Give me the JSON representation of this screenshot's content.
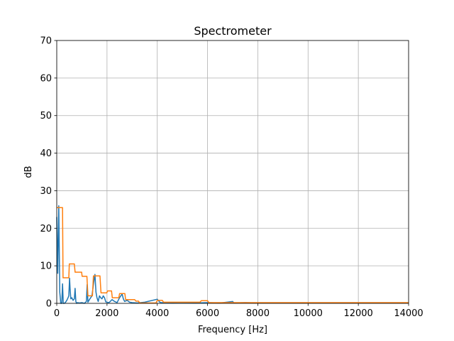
{
  "chart_data": {
    "type": "line",
    "title": "Spectrometer",
    "xlabel": "Frequency [Hz]",
    "ylabel": "dB",
    "xlim": [
      0,
      14000
    ],
    "xticks": [
      0,
      2000,
      4000,
      6000,
      8000,
      10000,
      12000,
      14000
    ],
    "ylim": [
      0,
      70
    ],
    "yticks": [
      0,
      10,
      20,
      30,
      40,
      50,
      60,
      70
    ],
    "grid": true,
    "series": [
      {
        "color": "#1f77b4",
        "x": [
          0,
          40,
          80,
          120,
          160,
          200,
          230,
          260,
          300,
          350,
          400,
          450,
          480,
          510,
          530,
          560,
          600,
          650,
          700,
          730,
          760,
          790,
          820,
          900,
          1000,
          1100,
          1180,
          1210,
          1240,
          1300,
          1400,
          1480,
          1520,
          1560,
          1600,
          1650,
          1700,
          1750,
          1800,
          1850,
          1900,
          1950,
          2000,
          2050,
          2100,
          2200,
          2300,
          2400,
          2500,
          2600,
          2650,
          2700,
          2800,
          2900,
          3000,
          3200,
          3500,
          4000,
          4100,
          4150,
          4300,
          4600,
          5000,
          5500,
          6000,
          6500,
          7000,
          7050,
          7500,
          8000,
          9000,
          10000,
          11000,
          12000,
          13000,
          14000
        ],
        "values": [
          23,
          8,
          26,
          3,
          0,
          0,
          5.2,
          0,
          0,
          0.3,
          0.8,
          1.5,
          2,
          6.7,
          4,
          1.2,
          1.5,
          0.8,
          1.2,
          4,
          0.5,
          0,
          0.2,
          0.1,
          0.2,
          0,
          0.5,
          5,
          0.3,
          1,
          2,
          6,
          7.7,
          3,
          1.5,
          0.5,
          2,
          1.5,
          1.2,
          2,
          1.5,
          0.4,
          0.3,
          0.2,
          0.3,
          1,
          0.5,
          0.2,
          1.5,
          2.5,
          1.2,
          0.5,
          0.8,
          0.3,
          0.2,
          0.1,
          0.3,
          1.1,
          0.3,
          0.2,
          0.2,
          0.1,
          0.2,
          0.1,
          0.2,
          0.1,
          0.5,
          0.1,
          0.2,
          0.1,
          0.1,
          0.1,
          0.1,
          0.1,
          0.1,
          0.1
        ]
      },
      {
        "color": "#ff7f0e",
        "x": [
          0,
          230,
          250,
          480,
          500,
          700,
          730,
          990,
          1010,
          1200,
          1240,
          1420,
          1460,
          1720,
          1760,
          1990,
          2020,
          2180,
          2210,
          2470,
          2500,
          2710,
          2740,
          3100,
          3150,
          3250,
          3300,
          3950,
          4000,
          4200,
          4250,
          5700,
          5750,
          6000,
          6050,
          14000
        ],
        "values": [
          25.5,
          25.5,
          6.8,
          6.8,
          10.5,
          10.5,
          8.3,
          8.3,
          7.2,
          7.2,
          2,
          2,
          7.3,
          7.3,
          2.8,
          2.8,
          3.3,
          3.3,
          1.5,
          1.5,
          2.6,
          2.6,
          1,
          1,
          0.6,
          0.6,
          0.1,
          0.1,
          0.8,
          0.8,
          0.3,
          0.3,
          0.7,
          0.7,
          0.2,
          0.2
        ]
      }
    ]
  }
}
